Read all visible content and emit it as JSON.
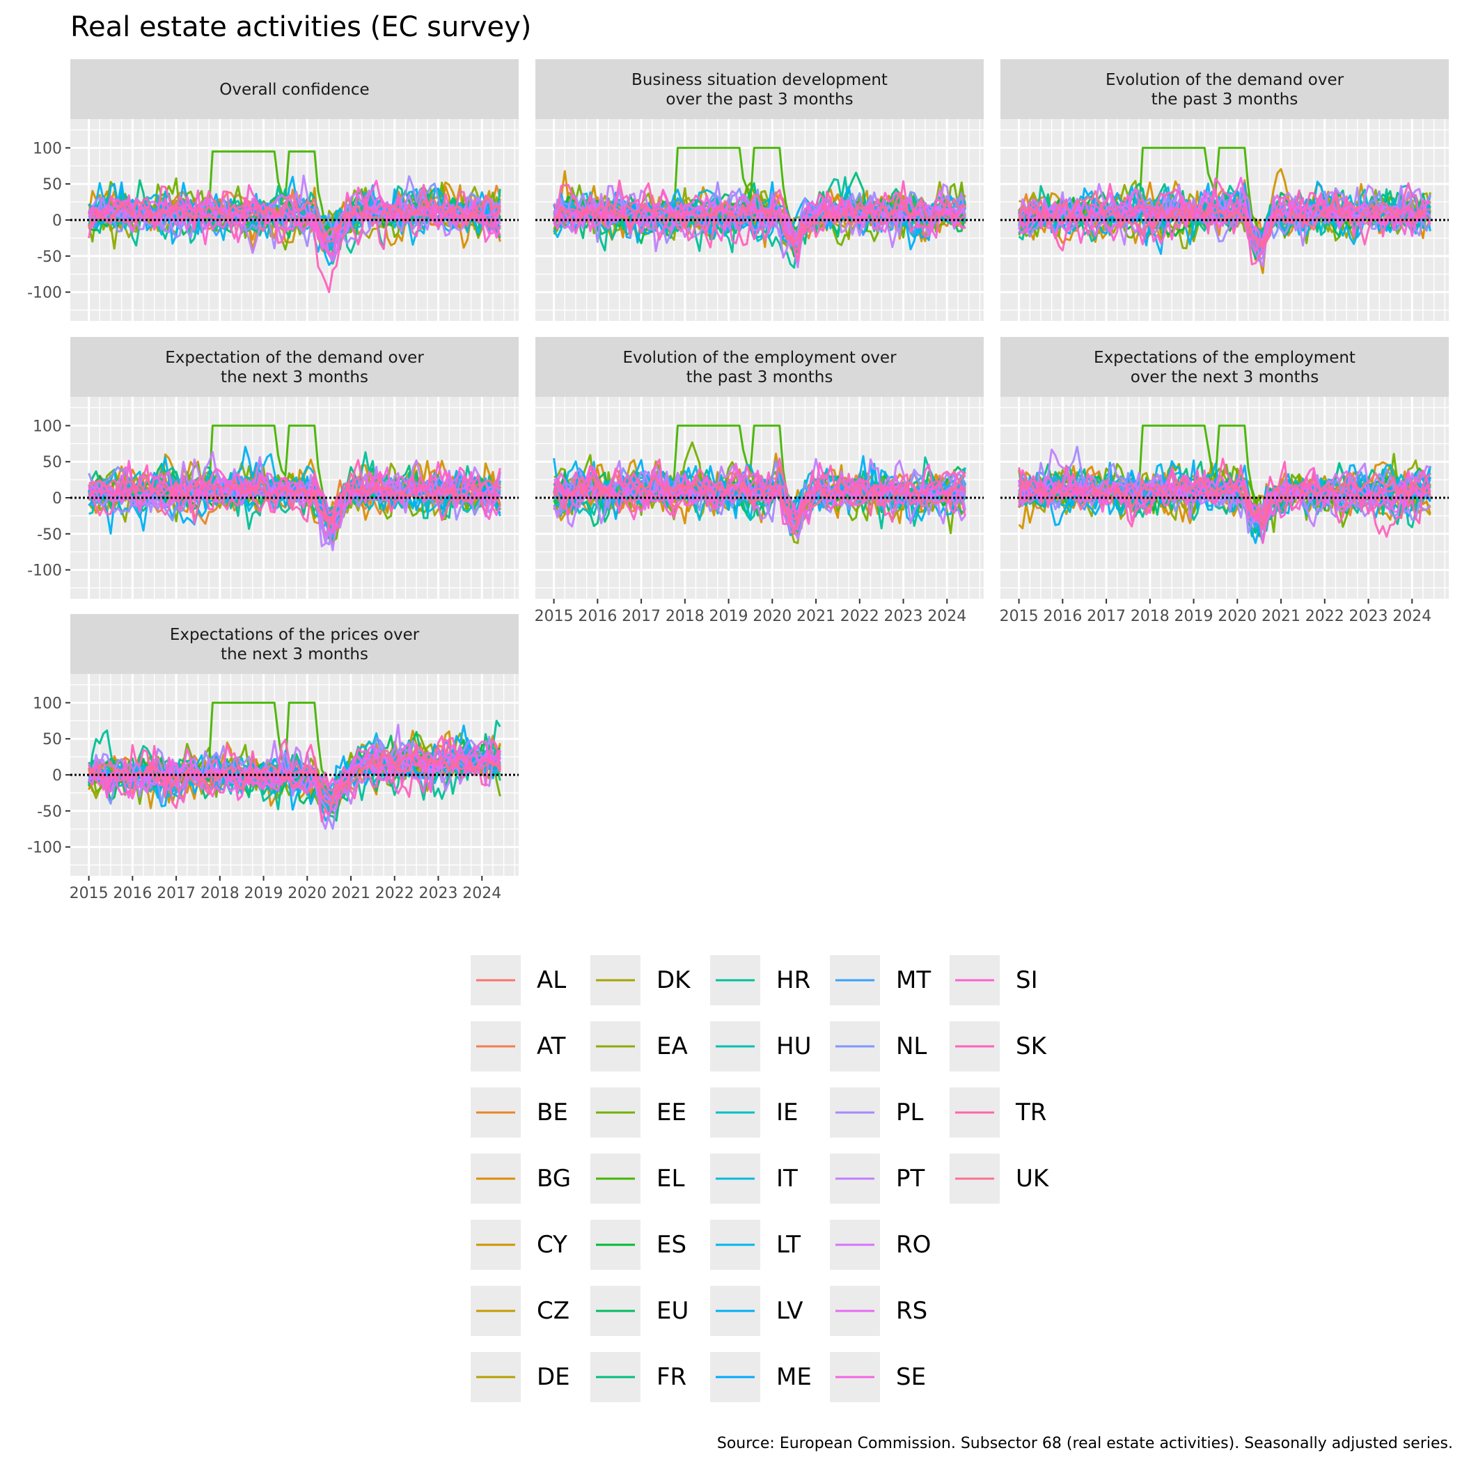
{
  "chart_data": {
    "type": "line",
    "title": "Real estate activities (EC survey)",
    "caption": "Source: European Commission. Subsector 68 (real estate activities). Seasonally adjusted series.",
    "xlabel": "",
    "ylabel": "",
    "x_range": [
      "2015-01",
      "2024-06"
    ],
    "ylim": [
      -140,
      140
    ],
    "y_ticks": [
      100,
      50,
      0,
      -50,
      -100
    ],
    "y_tick_labels": [
      "100",
      "50",
      "0",
      "-50",
      "-100"
    ],
    "x_ticks": [
      2015,
      2016,
      2017,
      2018,
      2019,
      2020,
      2021,
      2022,
      2023,
      2024
    ],
    "x_tick_labels": [
      "2015",
      "2016",
      "2017",
      "2018",
      "2019",
      "2020",
      "2021",
      "2022",
      "2023",
      "2024"
    ],
    "zero_line": true,
    "grid": true,
    "legend_position": "bottom",
    "panels": [
      {
        "title": "Overall confidence"
      },
      {
        "title": "Business situation development\nover the past 3 months"
      },
      {
        "title": "Evolution of the demand over\nthe past 3 months"
      },
      {
        "title": "Expectation of the demand over\nthe next 3 months"
      },
      {
        "title": "Evolution of the employment over\nthe past 3 months"
      },
      {
        "title": "Expectations of the employment\nover the next 3 months"
      },
      {
        "title": "Expectations of the prices over\nthe next 3 months"
      }
    ],
    "series": [
      {
        "name": "AL",
        "color": "#F8766D"
      },
      {
        "name": "AT",
        "color": "#F17D51"
      },
      {
        "name": "BE",
        "color": "#E88526"
      },
      {
        "name": "BG",
        "color": "#DE8C00"
      },
      {
        "name": "CY",
        "color": "#D29300"
      },
      {
        "name": "CZ",
        "color": "#C49A00"
      },
      {
        "name": "DE",
        "color": "#B4A000"
      },
      {
        "name": "DK",
        "color": "#A3A500"
      },
      {
        "name": "EA",
        "color": "#8EAB00"
      },
      {
        "name": "EE",
        "color": "#72B000"
      },
      {
        "name": "EL",
        "color": "#45B500"
      },
      {
        "name": "ES",
        "color": "#00BA38"
      },
      {
        "name": "EU",
        "color": "#00BD5F"
      },
      {
        "name": "FR",
        "color": "#00BF7D"
      },
      {
        "name": "HR",
        "color": "#00C098"
      },
      {
        "name": "HU",
        "color": "#00C0B0"
      },
      {
        "name": "IE",
        "color": "#00BFC4"
      },
      {
        "name": "IT",
        "color": "#00BCD8"
      },
      {
        "name": "LT",
        "color": "#00B6EB"
      },
      {
        "name": "LV",
        "color": "#00B0F6"
      },
      {
        "name": "ME",
        "color": "#00A9FF"
      },
      {
        "name": "MT",
        "color": "#35A2FF"
      },
      {
        "name": "NL",
        "color": "#7F96FF"
      },
      {
        "name": "PL",
        "color": "#A58AFF"
      },
      {
        "name": "PT",
        "color": "#C17FFF"
      },
      {
        "name": "RO",
        "color": "#D674FD"
      },
      {
        "name": "RS",
        "color": "#E76BF3"
      },
      {
        "name": "SE",
        "color": "#F564E3"
      },
      {
        "name": "SI",
        "color": "#FC61D2"
      },
      {
        "name": "SK",
        "color": "#FF62BC"
      },
      {
        "name": "TR",
        "color": "#FF65A9"
      },
      {
        "name": "UK",
        "color": "#FB6E92"
      }
    ]
  }
}
